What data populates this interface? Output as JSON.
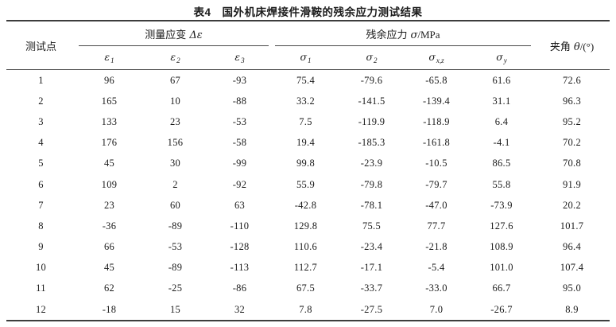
{
  "title": {
    "label": "表4",
    "caption": "国外机床焊接件滑鞍的残余应力测试结果"
  },
  "table": {
    "headers": {
      "test_point": "测试点",
      "strain_group_label": "测量应变",
      "strain_group_symbol": "Δε",
      "stress_group_label": "残余应力",
      "stress_group_symbol": "σ",
      "stress_group_unit": "/MPa",
      "angle_label": "夹角",
      "angle_symbol": "θ",
      "angle_unit": "/(°)"
    },
    "sub_headers": [
      {
        "id": "epsilon-1",
        "sym": "ε",
        "sub": "1"
      },
      {
        "id": "epsilon-2",
        "sym": "ε",
        "sub": "2"
      },
      {
        "id": "epsilon-3",
        "sym": "ε",
        "sub": "3"
      },
      {
        "id": "sigma-1",
        "sym": "σ",
        "sub": "1"
      },
      {
        "id": "sigma-2",
        "sym": "σ",
        "sub": "2"
      },
      {
        "id": "sigma-xz",
        "sym": "σ",
        "sub": "x,z"
      },
      {
        "id": "sigma-y",
        "sym": "σ",
        "sub": "y"
      }
    ],
    "columns": [
      "point",
      "e1",
      "e2",
      "e3",
      "s1",
      "s2",
      "sxz",
      "sy",
      "angle"
    ],
    "rows": [
      [
        "1",
        "96",
        "67",
        "-93",
        "75.4",
        "-79.6",
        "-65.8",
        "61.6",
        "72.6"
      ],
      [
        "2",
        "165",
        "10",
        "-88",
        "33.2",
        "-141.5",
        "-139.4",
        "31.1",
        "96.3"
      ],
      [
        "3",
        "133",
        "23",
        "-53",
        "7.5",
        "-119.9",
        "-118.9",
        "6.4",
        "95.2"
      ],
      [
        "4",
        "176",
        "156",
        "-58",
        "19.4",
        "-185.3",
        "-161.8",
        "-4.1",
        "70.2"
      ],
      [
        "5",
        "45",
        "30",
        "-99",
        "99.8",
        "-23.9",
        "-10.5",
        "86.5",
        "70.8"
      ],
      [
        "6",
        "109",
        "2",
        "-92",
        "55.9",
        "-79.8",
        "-79.7",
        "55.8",
        "91.9"
      ],
      [
        "7",
        "23",
        "60",
        "63",
        "-42.8",
        "-78.1",
        "-47.0",
        "-73.9",
        "20.2"
      ],
      [
        "8",
        "-36",
        "-89",
        "-110",
        "129.8",
        "75.5",
        "77.7",
        "127.6",
        "101.7"
      ],
      [
        "9",
        "66",
        "-53",
        "-128",
        "110.6",
        "-23.4",
        "-21.8",
        "108.9",
        "96.4"
      ],
      [
        "10",
        "45",
        "-89",
        "-113",
        "112.7",
        "-17.1",
        "-5.4",
        "101.0",
        "107.4"
      ],
      [
        "11",
        "62",
        "-25",
        "-86",
        "67.5",
        "-33.7",
        "-33.0",
        "66.7",
        "95.0"
      ],
      [
        "12",
        "-18",
        "15",
        "32",
        "7.8",
        "-27.5",
        "7.0",
        "-26.7",
        "8.9"
      ]
    ],
    "colors": {
      "text": "#1b1b1b",
      "rule": "#3d3d3d",
      "background": "#ffffff"
    }
  }
}
